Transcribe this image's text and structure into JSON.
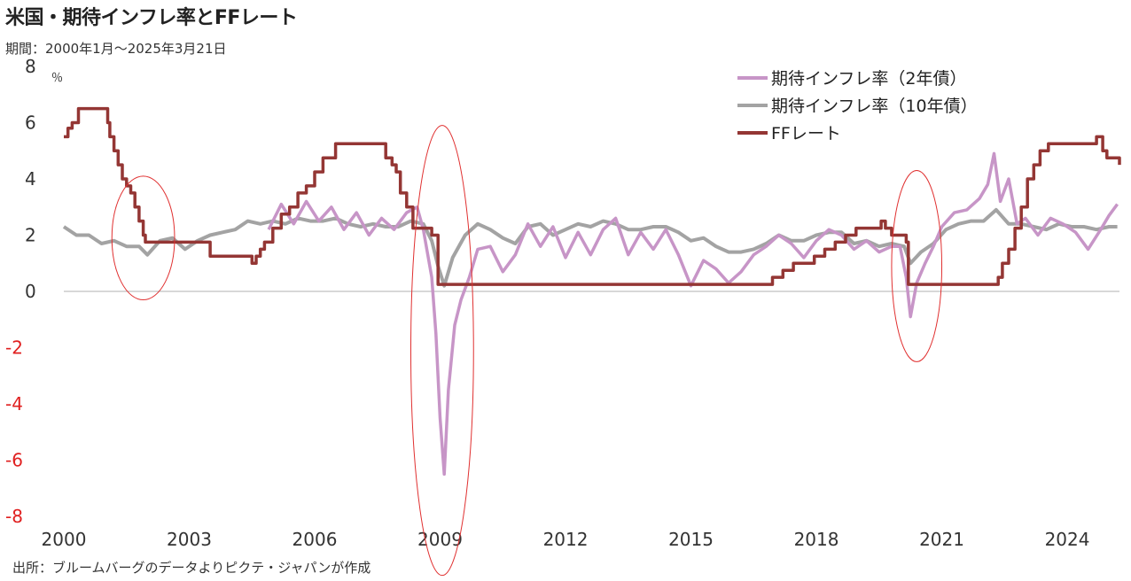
{
  "header": {
    "title": "米国・期待インフレ率とFFレート",
    "subtitle": "期間：2000年1月～2025年3月21日"
  },
  "footer": {
    "source": "出所：ブルームバーグのデータよりピクテ・ジャパンが作成"
  },
  "colors": {
    "breakeven_2y": "#c795c7",
    "breakeven_10y": "#a3a3a3",
    "ff_rate": "#943634",
    "negative_tick": "#e02020",
    "ellipse": "#e03030"
  },
  "chart_data": {
    "type": "line",
    "ylabel": "％",
    "ylim": [
      -8,
      8
    ],
    "xlim": [
      2000,
      2025.25
    ],
    "grid": false,
    "legend_position": "top-right",
    "y_ticks": [
      "8",
      "6",
      "4",
      "2",
      "0",
      "-2",
      "-4",
      "-6",
      "-8"
    ],
    "x_ticks": [
      "2000",
      "2003",
      "2006",
      "2009",
      "2012",
      "2015",
      "2018",
      "2021",
      "2024"
    ],
    "highlight_ellipses": [
      {
        "x_center": 2001.9,
        "y_center": 1.9,
        "x_half": 0.75,
        "y_half": 2.2
      },
      {
        "x_center": 2009.05,
        "y_center": -2.1,
        "x_half": 0.75,
        "y_half": 8.0
      },
      {
        "x_center": 2020.4,
        "y_center": 0.9,
        "x_half": 0.6,
        "y_half": 3.4
      }
    ],
    "series": [
      {
        "name": "期待インフレ率（2年債）",
        "x": [
          2004.9,
          2005.2,
          2005.5,
          2005.8,
          2006.1,
          2006.4,
          2006.7,
          2007.0,
          2007.3,
          2007.6,
          2007.9,
          2008.2,
          2008.45,
          2008.6,
          2008.8,
          2008.9,
          2009.0,
          2009.1,
          2009.2,
          2009.35,
          2009.5,
          2009.7,
          2009.9,
          2010.2,
          2010.5,
          2010.8,
          2011.1,
          2011.4,
          2011.7,
          2012.0,
          2012.3,
          2012.6,
          2012.9,
          2013.2,
          2013.5,
          2013.8,
          2014.1,
          2014.4,
          2014.7,
          2015.0,
          2015.3,
          2015.6,
          2015.9,
          2016.2,
          2016.5,
          2016.8,
          2017.1,
          2017.4,
          2017.7,
          2018.0,
          2018.3,
          2018.6,
          2018.9,
          2019.2,
          2019.5,
          2019.8,
          2020.0,
          2020.15,
          2020.25,
          2020.4,
          2020.6,
          2020.8,
          2021.0,
          2021.3,
          2021.6,
          2021.9,
          2022.1,
          2022.25,
          2022.4,
          2022.6,
          2022.8,
          2023.0,
          2023.3,
          2023.6,
          2023.9,
          2024.2,
          2024.5,
          2024.8,
          2025.0,
          2025.2
        ],
        "values": [
          2.2,
          3.1,
          2.4,
          3.2,
          2.5,
          3.0,
          2.2,
          2.8,
          2.0,
          2.6,
          2.2,
          2.8,
          3.0,
          2.2,
          0.5,
          -1.5,
          -4.5,
          -6.5,
          -3.5,
          -1.2,
          -0.3,
          0.5,
          1.5,
          1.6,
          0.7,
          1.3,
          2.4,
          1.6,
          2.3,
          1.2,
          2.1,
          1.3,
          2.2,
          2.6,
          1.3,
          2.1,
          1.5,
          2.2,
          1.3,
          0.2,
          1.1,
          0.8,
          0.3,
          0.7,
          1.3,
          1.6,
          2.0,
          1.7,
          1.2,
          1.8,
          2.2,
          2.0,
          1.5,
          1.8,
          1.4,
          1.6,
          1.6,
          0.5,
          -0.9,
          0.3,
          1.0,
          1.6,
          2.3,
          2.8,
          2.9,
          3.3,
          3.8,
          4.9,
          3.2,
          4.0,
          2.4,
          2.6,
          2.0,
          2.6,
          2.4,
          2.1,
          1.5,
          2.2,
          2.7,
          3.1
        ]
      },
      {
        "name": "期待インフレ率（10年債）",
        "x": [
          2000.0,
          2000.3,
          2000.6,
          2000.9,
          2001.2,
          2001.5,
          2001.8,
          2002.0,
          2002.3,
          2002.6,
          2002.9,
          2003.2,
          2003.5,
          2003.8,
          2004.1,
          2004.4,
          2004.7,
          2005.0,
          2005.3,
          2005.6,
          2005.9,
          2006.2,
          2006.5,
          2006.8,
          2007.1,
          2007.4,
          2007.7,
          2008.0,
          2008.3,
          2008.6,
          2008.8,
          2008.95,
          2009.1,
          2009.3,
          2009.6,
          2009.9,
          2010.2,
          2010.5,
          2010.8,
          2011.1,
          2011.4,
          2011.7,
          2012.0,
          2012.3,
          2012.6,
          2012.9,
          2013.2,
          2013.5,
          2013.8,
          2014.1,
          2014.4,
          2014.7,
          2015.0,
          2015.3,
          2015.6,
          2015.9,
          2016.2,
          2016.5,
          2016.8,
          2017.1,
          2017.4,
          2017.7,
          2018.0,
          2018.3,
          2018.6,
          2018.9,
          2019.2,
          2019.5,
          2019.8,
          2020.1,
          2020.25,
          2020.5,
          2020.8,
          2021.1,
          2021.4,
          2021.7,
          2022.0,
          2022.3,
          2022.6,
          2022.9,
          2023.2,
          2023.5,
          2023.8,
          2024.1,
          2024.4,
          2024.7,
          2025.0,
          2025.2
        ],
        "values": [
          2.3,
          2.0,
          2.0,
          1.7,
          1.8,
          1.6,
          1.6,
          1.3,
          1.8,
          1.9,
          1.5,
          1.8,
          2.0,
          2.1,
          2.2,
          2.5,
          2.4,
          2.5,
          2.4,
          2.6,
          2.5,
          2.5,
          2.6,
          2.4,
          2.3,
          2.4,
          2.3,
          2.3,
          2.5,
          2.4,
          1.8,
          0.9,
          0.2,
          1.2,
          2.0,
          2.4,
          2.2,
          1.9,
          1.7,
          2.3,
          2.4,
          2.0,
          2.2,
          2.4,
          2.3,
          2.5,
          2.4,
          2.2,
          2.2,
          2.3,
          2.3,
          2.1,
          1.8,
          1.9,
          1.6,
          1.4,
          1.4,
          1.5,
          1.7,
          2.0,
          1.8,
          1.8,
          2.0,
          2.1,
          2.1,
          1.7,
          1.8,
          1.6,
          1.7,
          1.6,
          1.0,
          1.4,
          1.7,
          2.2,
          2.4,
          2.5,
          2.5,
          2.9,
          2.4,
          2.4,
          2.3,
          2.2,
          2.4,
          2.3,
          2.3,
          2.2,
          2.3,
          2.3
        ]
      },
      {
        "name": "FFレート",
        "x": [
          2000.0,
          2000.1,
          2000.2,
          2000.35,
          2001.0,
          2001.05,
          2001.1,
          2001.2,
          2001.3,
          2001.4,
          2001.5,
          2001.6,
          2001.7,
          2001.8,
          2001.9,
          2001.95,
          2002.9,
          2003.5,
          2004.5,
          2004.6,
          2004.7,
          2004.8,
          2005.0,
          2005.2,
          2005.4,
          2005.6,
          2005.8,
          2006.0,
          2006.2,
          2006.5,
          2007.6,
          2007.7,
          2007.85,
          2007.95,
          2008.05,
          2008.2,
          2008.35,
          2008.8,
          2008.95,
          2015.95,
          2016.95,
          2017.2,
          2017.45,
          2017.95,
          2018.2,
          2018.45,
          2018.7,
          2018.95,
          2019.55,
          2019.65,
          2019.8,
          2020.15,
          2020.2,
          2022.2,
          2022.35,
          2022.45,
          2022.6,
          2022.75,
          2022.9,
          2023.05,
          2023.2,
          2023.35,
          2023.55,
          2024.7,
          2024.85,
          2024.95,
          2025.25
        ],
        "values": [
          5.5,
          5.8,
          6.0,
          6.5,
          6.5,
          6.0,
          5.5,
          5.0,
          4.5,
          4.0,
          3.75,
          3.5,
          3.0,
          2.5,
          2.0,
          1.75,
          1.75,
          1.25,
          1.0,
          1.25,
          1.5,
          1.75,
          2.25,
          2.75,
          3.0,
          3.5,
          3.75,
          4.25,
          4.75,
          5.25,
          5.25,
          4.75,
          4.5,
          4.25,
          3.5,
          3.0,
          2.25,
          2.0,
          0.25,
          0.25,
          0.5,
          0.75,
          1.0,
          1.25,
          1.5,
          1.75,
          2.0,
          2.25,
          2.5,
          2.25,
          2.0,
          1.75,
          0.25,
          0.25,
          0.5,
          1.0,
          1.5,
          2.25,
          3.0,
          4.0,
          4.5,
          5.0,
          5.25,
          5.5,
          5.0,
          4.75,
          4.5
        ]
      }
    ]
  }
}
